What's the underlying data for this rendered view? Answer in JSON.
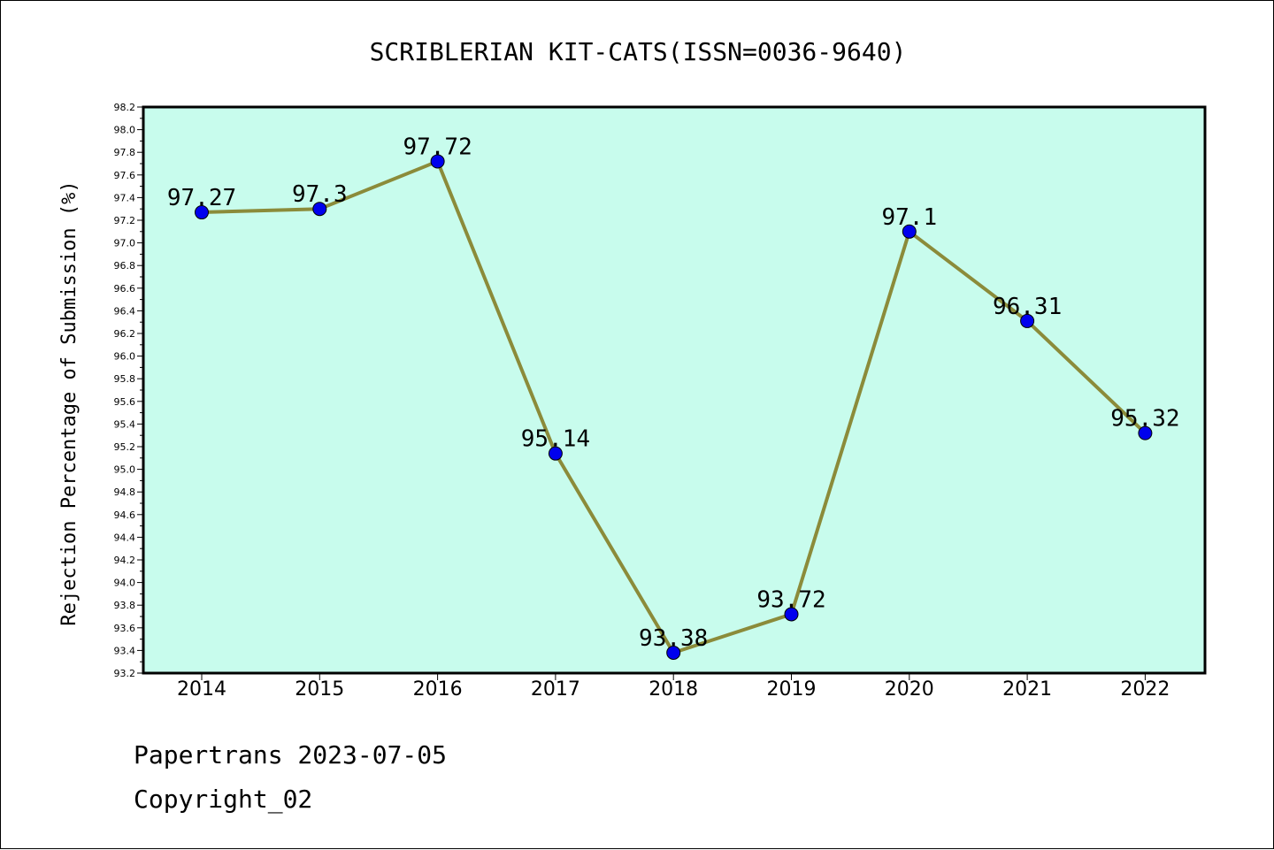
{
  "footer": {
    "line1": "Papertrans 2023-07-05",
    "line2": "Copyright_02"
  },
  "chart_data": {
    "type": "line",
    "title": "SCRIBLERIAN KIT-CATS(ISSN=0036-9640)",
    "xlabel": "",
    "ylabel": "Rejection Percentage of Submission (%)",
    "categories": [
      "2014",
      "2015",
      "2016",
      "2017",
      "2018",
      "2019",
      "2020",
      "2021",
      "2022"
    ],
    "series": [
      {
        "values": [
          97.27,
          97.3,
          97.72,
          95.14,
          93.38,
          93.72,
          97.1,
          96.31,
          95.32
        ],
        "data_labels": [
          "97.27",
          "97.3",
          "97.72",
          "95.14",
          "93.38",
          "93.72",
          "97.1",
          "96.31",
          "95.32"
        ]
      }
    ],
    "ylim": [
      93.2,
      98.2
    ],
    "yticks": [
      "93.2",
      "93.4",
      "93.6",
      "93.8",
      "94.0",
      "94.2",
      "94.4",
      "94.6",
      "94.8",
      "95.0",
      "95.2",
      "95.4",
      "95.6",
      "95.8",
      "96.0",
      "96.2",
      "96.4",
      "96.6",
      "96.8",
      "97.0",
      "97.2",
      "97.4",
      "97.6",
      "97.8",
      "98.0",
      "98.2"
    ],
    "grid": false,
    "colors": {
      "plot_background": "#c8fced",
      "line": "#8b8b3a",
      "marker": "#0000ee"
    }
  }
}
